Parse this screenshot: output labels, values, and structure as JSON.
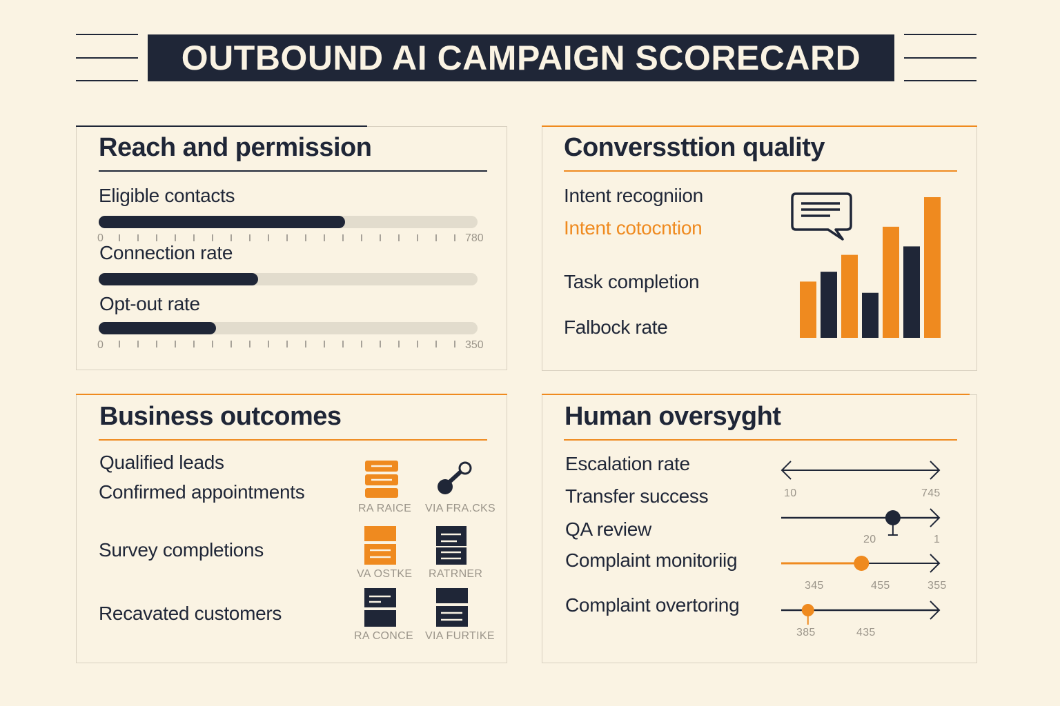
{
  "title": "OUTBOUND AI CAMPAIGN SCORECARD",
  "colors": {
    "navy": "#1f2637",
    "orange": "#ef8a1f",
    "background": "#faf3e3"
  },
  "reach": {
    "title": "Reach and permission",
    "bars": [
      {
        "label": "Eligible contacts",
        "fill": 0.65
      },
      {
        "label": "Connection rate",
        "fill": 0.42
      },
      {
        "label": "Opt-out rate",
        "fill": 0.31
      }
    ],
    "scale1": {
      "min": "0",
      "max": "780"
    },
    "scale2": {
      "min": "0",
      "max": "350"
    }
  },
  "quality": {
    "title": "Converssttion quality",
    "items": [
      "Intent recogniion",
      "Intent cotocntion",
      "Task completion",
      "Falbock rate"
    ],
    "chat_icon": "chat-bubble-icon",
    "bars": [
      {
        "color": "orange",
        "value": 40
      },
      {
        "color": "navy",
        "value": 47
      },
      {
        "color": "orange",
        "value": 59
      },
      {
        "color": "navy",
        "value": 32
      },
      {
        "color": "orange",
        "value": 79
      },
      {
        "color": "navy",
        "value": 65
      },
      {
        "color": "orange",
        "value": 100
      }
    ]
  },
  "outcomes": {
    "title": "Business outcomes",
    "items": [
      "Qualified leads",
      "Confirmed appointments",
      "Survey completions",
      "Recavated customers"
    ],
    "icons": [
      {
        "label": "RA  RAICE",
        "icon": "stack-icon"
      },
      {
        "label": "VIA FRA.CKS",
        "icon": "link-icon"
      },
      {
        "label": "VA  OSTKE",
        "icon": "form-icon"
      },
      {
        "label": "RATRNER",
        "icon": "document-icon"
      },
      {
        "label": "RA CONCE",
        "icon": "card-icon"
      },
      {
        "label": "VIA FURTIKE",
        "icon": "list-icon"
      }
    ]
  },
  "oversight": {
    "title": "Human oversyght",
    "items": [
      "Escalation rate",
      "Transfer success",
      "QA review",
      "Complaint monitoriig",
      "Complaint overtoring"
    ],
    "range1": {
      "min": "10",
      "max": "745"
    },
    "slider1": {
      "value_label": "20",
      "right_label": "1",
      "position": 0.71
    },
    "slider2": {
      "labels": [
        "345",
        "455",
        "355"
      ],
      "position": 0.51
    },
    "slider3": {
      "labels": [
        "385",
        "435"
      ],
      "position": 0.17
    }
  }
}
